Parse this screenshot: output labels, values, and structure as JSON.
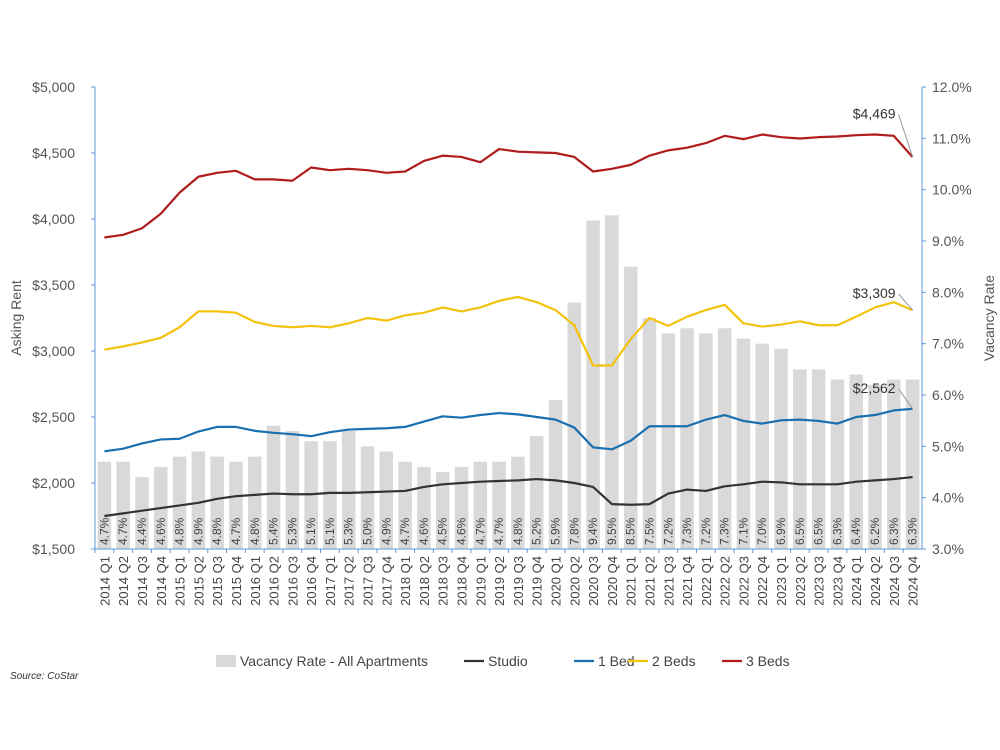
{
  "chart_data": {
    "type": "bar+line",
    "source": "Source: CoStar",
    "categories": [
      "2014 Q1",
      "2014 Q2",
      "2014 Q3",
      "2014 Q4",
      "2015 Q1",
      "2015 Q2",
      "2015 Q3",
      "2015 Q4",
      "2016 Q1",
      "2016 Q2",
      "2016 Q3",
      "2016 Q4",
      "2017 Q1",
      "2017 Q2",
      "2017 Q3",
      "2017 Q4",
      "2018 Q1",
      "2018 Q2",
      "2018 Q3",
      "2018 Q4",
      "2019 Q1",
      "2019 Q2",
      "2019 Q3",
      "2019 Q4",
      "2020 Q1",
      "2020 Q2",
      "2020 Q3",
      "2020 Q4",
      "2021 Q1",
      "2021 Q2",
      "2021 Q3",
      "2021 Q4",
      "2022 Q1",
      "2022 Q2",
      "2022 Q3",
      "2022 Q4",
      "2023 Q1",
      "2023 Q2",
      "2023 Q3",
      "2023 Q4",
      "2024 Q1",
      "2024 Q2",
      "2024 Q3",
      "2024 Q4"
    ],
    "left_axis": {
      "label": "Asking Rent",
      "range": [
        1500,
        5000
      ],
      "ticks": [
        "$1,500",
        "$2,000",
        "$2,500",
        "$3,000",
        "$3,500",
        "$4,000",
        "$4,500",
        "$5,000"
      ]
    },
    "right_axis": {
      "label": "Vacancy Rate",
      "range": [
        3.0,
        12.0
      ],
      "ticks": [
        "3.0%",
        "4.0%",
        "5.0%",
        "6.0%",
        "7.0%",
        "8.0%",
        "9.0%",
        "10.0%",
        "11.0%",
        "12.0%"
      ]
    },
    "bar_series": {
      "name": "Vacancy Rate - All Apartments",
      "color": "#d9d9d9",
      "values": [
        4.7,
        4.7,
        4.4,
        4.6,
        4.8,
        4.9,
        4.8,
        4.7,
        4.8,
        5.4,
        5.3,
        5.1,
        5.1,
        5.3,
        5.0,
        4.9,
        4.7,
        4.6,
        4.5,
        4.6,
        4.7,
        4.7,
        4.8,
        5.2,
        5.9,
        7.8,
        9.4,
        9.5,
        8.5,
        7.5,
        7.2,
        7.3,
        7.2,
        7.3,
        7.1,
        7.0,
        6.9,
        6.5,
        6.5,
        6.3,
        6.4,
        6.2,
        6.3,
        6.3
      ],
      "labels": [
        "4.7%",
        "4.7%",
        "4.4%",
        "4.6%",
        "4.8%",
        "4.9%",
        "4.8%",
        "4.7%",
        "4.8%",
        "5.4%",
        "5.3%",
        "5.1%",
        "5.1%",
        "5.3%",
        "5.0%",
        "4.9%",
        "4.7%",
        "4.6%",
        "4.5%",
        "4.6%",
        "4.7%",
        "4.7%",
        "4.8%",
        "5.2%",
        "5.9%",
        "7.8%",
        "9.4%",
        "9.5%",
        "8.5%",
        "7.5%",
        "7.2%",
        "7.3%",
        "7.2%",
        "7.3%",
        "7.1%",
        "7.0%",
        "6.9%",
        "6.5%",
        "6.5%",
        "6.3%",
        "6.4%",
        "6.2%",
        "6.3%",
        "6.3%"
      ]
    },
    "line_series": [
      {
        "name": "Studio",
        "color": "#333333",
        "values": [
          1750,
          1770,
          1790,
          1810,
          1830,
          1850,
          1880,
          1900,
          1910,
          1920,
          1915,
          1915,
          1925,
          1925,
          1930,
          1935,
          1940,
          1970,
          1990,
          2000,
          2010,
          2015,
          2020,
          2030,
          2020,
          2000,
          1970,
          1840,
          1835,
          1840,
          1920,
          1950,
          1940,
          1975,
          1990,
          2010,
          2005,
          1990,
          1990,
          1990,
          2010,
          2020,
          2030,
          2045
        ]
      },
      {
        "name": "1 Bed",
        "color": "#1a6faf",
        "values": [
          2240,
          2260,
          2300,
          2330,
          2335,
          2390,
          2425,
          2425,
          2395,
          2380,
          2370,
          2355,
          2385,
          2405,
          2410,
          2415,
          2425,
          2465,
          2505,
          2495,
          2515,
          2530,
          2520,
          2500,
          2480,
          2420,
          2270,
          2255,
          2320,
          2430,
          2430,
          2430,
          2480,
          2515,
          2470,
          2450,
          2475,
          2480,
          2470,
          2450,
          2500,
          2515,
          2550,
          2562
        ]
      },
      {
        "name": "2 Beds",
        "color": "#f4c20d",
        "values": [
          3010,
          3035,
          3065,
          3100,
          3180,
          3300,
          3300,
          3290,
          3220,
          3190,
          3180,
          3190,
          3180,
          3210,
          3250,
          3230,
          3270,
          3290,
          3330,
          3300,
          3330,
          3380,
          3410,
          3370,
          3310,
          3195,
          2890,
          2890,
          3090,
          3250,
          3190,
          3260,
          3310,
          3350,
          3210,
          3185,
          3200,
          3225,
          3195,
          3195,
          3260,
          3330,
          3370,
          3309
        ]
      },
      {
        "name": "3 Beds",
        "color": "#b01c1c",
        "values": [
          3860,
          3880,
          3930,
          4040,
          4200,
          4320,
          4350,
          4365,
          4300,
          4300,
          4290,
          4390,
          4370,
          4380,
          4370,
          4350,
          4360,
          4440,
          4480,
          4470,
          4430,
          4530,
          4510,
          4505,
          4500,
          4470,
          4360,
          4380,
          4410,
          4480,
          4520,
          4540,
          4575,
          4630,
          4605,
          4640,
          4620,
          4610,
          4620,
          4625,
          4635,
          4640,
          4630,
          4469
        ]
      }
    ],
    "callouts": [
      "$4,469",
      "$3,309",
      "$2,562"
    ],
    "legend_position": "bottom",
    "grid": false
  }
}
